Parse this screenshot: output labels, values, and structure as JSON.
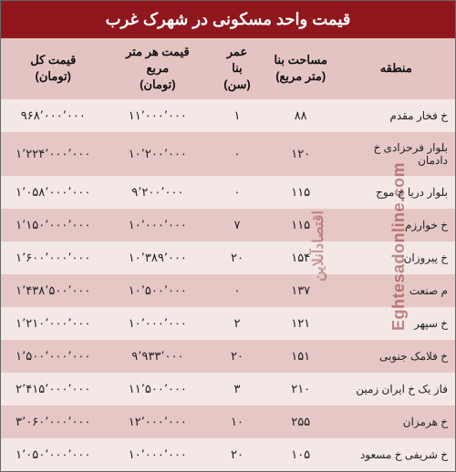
{
  "title": "قیمت واحد مسکونی در شهرک غرب",
  "colors": {
    "title_bg": "#91171e",
    "title_fg": "#ffffff",
    "header_bg": "#e4c4c3",
    "header_fg": "#111111",
    "row_odd_bg": "#f4e8e7",
    "row_even_bg": "#e5c7c6",
    "row_fg": "#222222",
    "border": "#666666"
  },
  "columns": [
    {
      "key": "region",
      "label": "منطقه",
      "width": "26%"
    },
    {
      "key": "area",
      "label": "مساحت بنا\n(متر مربع)",
      "width": "16%"
    },
    {
      "key": "age",
      "label": "عمر\nبنا\n(سن)",
      "width": "12%"
    },
    {
      "key": "ppm",
      "label": "قیمت هر متر\nمربع\n(تومان)",
      "width": "23%"
    },
    {
      "key": "total",
      "label": "قیمت کل\n(تومان)",
      "width": "23%"
    }
  ],
  "rows": [
    {
      "region": "خ فخار مقدم",
      "area": "۸۸",
      "age": "۱",
      "ppm": "۱۱٬۰۰۰٬۰۰۰",
      "total": "۹۶۸٬۰۰۰٬۰۰۰"
    },
    {
      "region": "بلوار فرحزادی خ دادمان",
      "area": "۱۲۰",
      "age": "۰",
      "ppm": "۱۰٬۲۰۰٬۰۰۰",
      "total": "۱٬۲۲۴٬۰۰۰٬۰۰۰"
    },
    {
      "region": "بلوار دریا خ موج",
      "area": "۱۱۵",
      "age": "۰",
      "ppm": "۹٬۲۰۰٬۰۰۰",
      "total": "۱٬۰۵۸٬۰۰۰٬۰۰۰"
    },
    {
      "region": "خ خوارزم",
      "area": "۱۱۵",
      "age": "۷",
      "ppm": "۱۰٬۰۰۰٬۰۰۰",
      "total": "۱٬۱۵۰٬۰۰۰٬۰۰۰"
    },
    {
      "region": "خ پیروزان",
      "area": "۱۵۴",
      "age": "۲۰",
      "ppm": "۱۰٬۳۸۹٬۰۰۰",
      "total": "۱٬۶۰۰٬۰۰۰٬۰۰۰"
    },
    {
      "region": "م صنعت",
      "area": "۱۳۷",
      "age": "۰",
      "ppm": "۱۰٬۵۰۰٬۰۰۰",
      "total": "۱٬۴۳۸٬۵۰۰٬۰۰۰"
    },
    {
      "region": "خ سپهر",
      "area": "۱۲۱",
      "age": "۲",
      "ppm": "۱۰٬۰۰۰٬۰۰۰",
      "total": "۱٬۲۱۰٬۰۰۰٬۰۰۰"
    },
    {
      "region": "خ فلامک جنوبی",
      "area": "۱۵۱",
      "age": "۲۰",
      "ppm": "۹٬۹۳۳٬۰۰۰",
      "total": "۱٬۵۰۰٬۰۰۰٬۰۰۰"
    },
    {
      "region": "فاز یک خ ایران زمین",
      "area": "۲۱۰",
      "age": "۳",
      "ppm": "۱۱٬۵۰۰٬۰۰۰",
      "total": "۲٬۴۱۵٬۰۰۰٬۰۰۰"
    },
    {
      "region": "خ هرمزان",
      "area": "۲۵۵",
      "age": "۱۰",
      "ppm": "۱۲٬۰۰۰٬۰۰۰",
      "total": "۳٬۰۶۰٬۰۰۰٬۰۰۰"
    },
    {
      "region": "خ شریفی خ مسعود",
      "area": "۱۰۵",
      "age": "۲۰",
      "ppm": "۱۰٬۰۰۰٬۰۰۰",
      "total": "۱٬۰۵۰٬۰۰۰٬۰۰۰"
    }
  ],
  "watermark_en": "Eghtesadonline.com",
  "watermark_fa": "اقتصادآنلاین"
}
